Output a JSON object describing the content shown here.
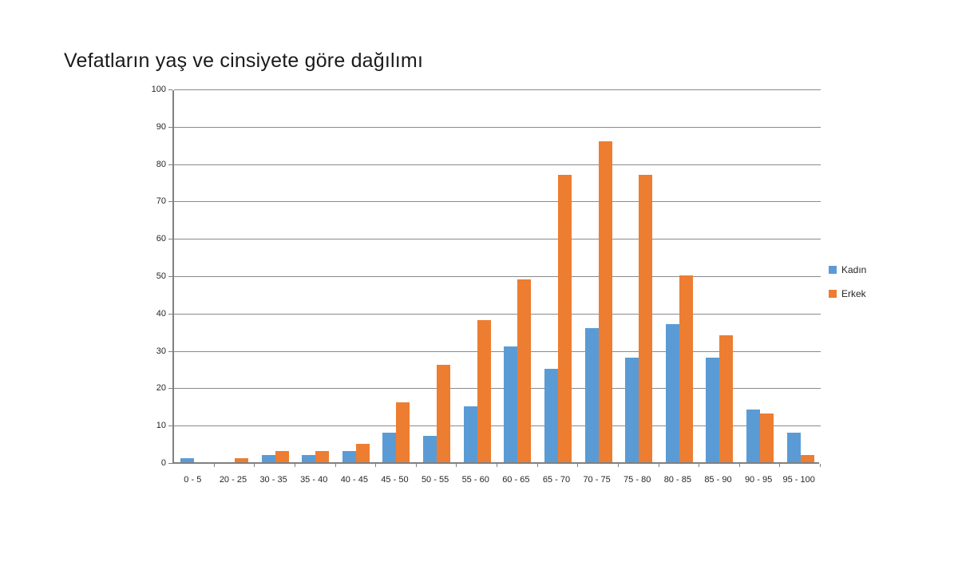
{
  "title": "Vefatların yaş ve cinsiyete göre dağılımı",
  "chart_data": {
    "type": "bar",
    "title": "Vefatların yaş ve cinsiyete göre dağılımı",
    "categories": [
      "0 - 5",
      "20 - 25",
      "30 - 35",
      "35 - 40",
      "40 - 45",
      "45 - 50",
      "50 - 55",
      "55 - 60",
      "60 - 65",
      "65 - 70",
      "70 - 75",
      "75 - 80",
      "80 - 85",
      "85 - 90",
      "90 - 95",
      "95 - 100"
    ],
    "series": [
      {
        "name": "Kadın",
        "color": "#5B9BD5",
        "values": [
          1,
          0,
          2,
          2,
          3,
          8,
          7,
          15,
          31,
          25,
          36,
          28,
          37,
          28,
          14,
          8
        ]
      },
      {
        "name": "Erkek",
        "color": "#ED7D31",
        "values": [
          0,
          1,
          3,
          3,
          5,
          16,
          26,
          38,
          49,
          77,
          86,
          77,
          50,
          34,
          13,
          2
        ]
      }
    ],
    "xlabel": "",
    "ylabel": "",
    "ylim": [
      0,
      100
    ],
    "ytick_step": 10,
    "ytick_labels": [
      "0",
      "10",
      "20",
      "30",
      "40",
      "50",
      "60",
      "70",
      "80",
      "90",
      "100"
    ],
    "grid": true,
    "legend_position": "right"
  },
  "colors": {
    "kadin": "#5B9BD5",
    "erkek": "#ED7D31",
    "gridline": "#8a8a8a",
    "axis": "#808080",
    "text": "#262626"
  }
}
